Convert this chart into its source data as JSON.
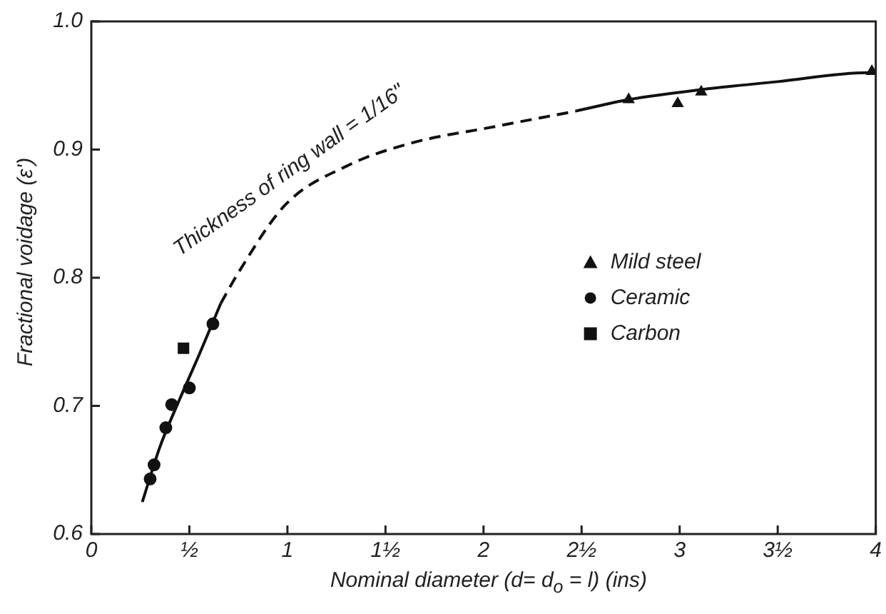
{
  "chart_data": {
    "type": "scatter",
    "xlabel": "Nominal diameter (d= d$_{o}$ = l) (ins)",
    "ylabel": "Fractional voidage (ε')",
    "xlim": [
      0,
      4
    ],
    "ylim": [
      0.6,
      1.0
    ],
    "xticks": [
      0,
      {
        "value": 0.5,
        "label": "½"
      },
      1,
      {
        "value": 1.5,
        "label": "1½"
      },
      2,
      {
        "value": 2.5,
        "label": "2½"
      },
      3,
      {
        "value": 3.5,
        "label": "3½"
      },
      4
    ],
    "yticks": [
      0.6,
      0.7,
      0.8,
      0.9,
      {
        "value": 1.0,
        "label": "1.0"
      }
    ],
    "grid": false,
    "legend": "right",
    "series": [
      {
        "name": "Mild steel",
        "type": "scatter",
        "marker": "triangle",
        "color": "#111111",
        "x": [
          2.74,
          2.99,
          3.11,
          3.98
        ],
        "values": [
          0.939,
          0.936,
          0.945,
          0.961
        ]
      },
      {
        "name": "Ceramic",
        "type": "scatter",
        "marker": "circle",
        "color": "#111111",
        "x": [
          0.3,
          0.32,
          0.38,
          0.41,
          0.5,
          0.62
        ],
        "values": [
          0.643,
          0.654,
          0.683,
          0.701,
          0.714,
          0.764
        ]
      },
      {
        "name": "Carbon",
        "type": "scatter",
        "marker": "square",
        "color": "#111111",
        "x": [
          0.47
        ],
        "values": [
          0.745
        ]
      },
      {
        "type": "line",
        "line_style": "solid",
        "color": "#111111",
        "x": [
          0.26,
          0.35,
          0.45,
          0.55,
          0.66
        ],
        "values": [
          0.625,
          0.668,
          0.705,
          0.74,
          0.78
        ]
      },
      {
        "type": "line",
        "line_style": "dashed",
        "color": "#111111",
        "x": [
          0.66,
          0.75,
          0.99,
          1.3,
          1.63,
          2.06,
          2.47
        ],
        "values": [
          0.78,
          0.804,
          0.857,
          0.887,
          0.905,
          0.918,
          0.93
        ]
      },
      {
        "type": "line",
        "line_style": "solid",
        "color": "#111111",
        "x": [
          2.47,
          2.74,
          3.12,
          3.5,
          3.96,
          4.0
        ],
        "values": [
          0.93,
          0.939,
          0.947,
          0.953,
          0.96,
          0.96
        ]
      }
    ],
    "annotations": [
      {
        "text": "Thickness of ring wall = 1/16\"",
        "x": 1.1,
        "y": 0.87
      }
    ]
  }
}
